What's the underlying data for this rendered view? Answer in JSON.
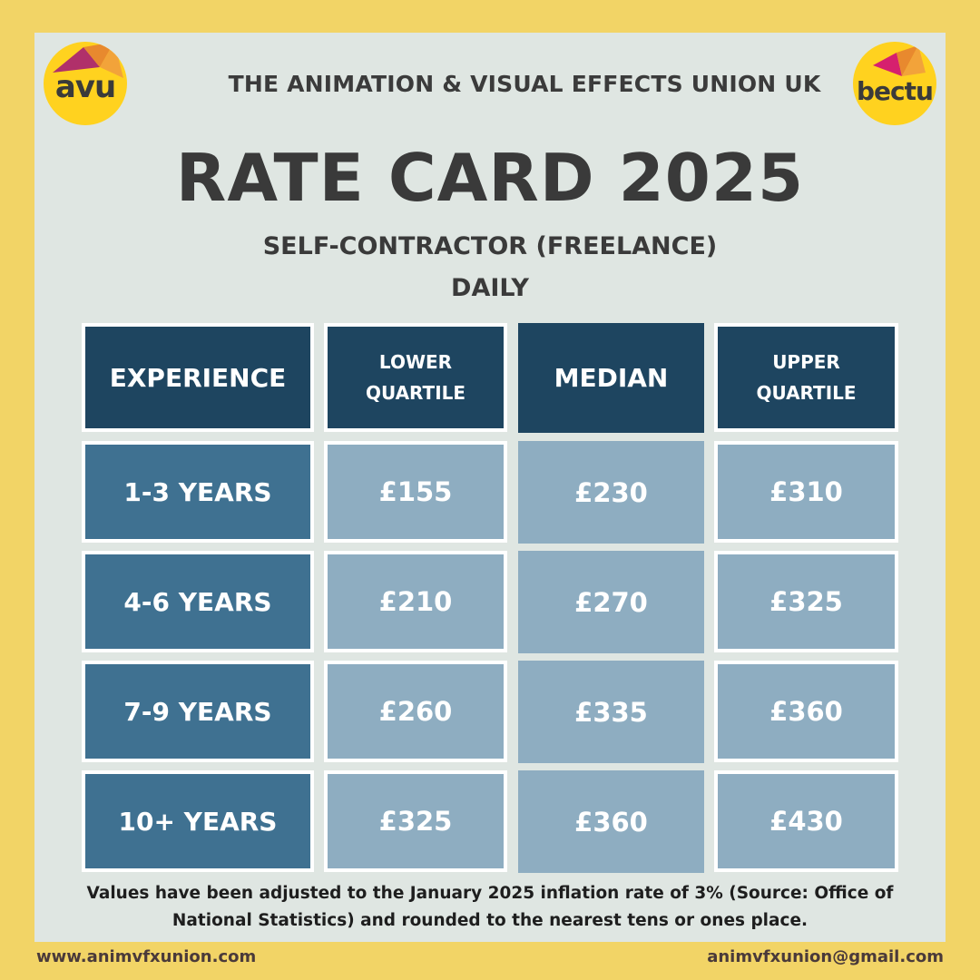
{
  "logos": {
    "left": {
      "text": "avu",
      "icon": "avu-origami-logo-icon"
    },
    "right": {
      "text": "bectu",
      "icon": "bectu-origami-logo-icon"
    }
  },
  "header": {
    "union_name": "THE ANIMATION & VISUAL EFFECTS UNION UK",
    "title": "RATE CARD 2025",
    "subtitle": "SELF-CONTRACTOR (FREELANCE)",
    "period": "DAILY"
  },
  "table": {
    "columns": [
      "EXPERIENCE",
      "LOWER QUARTILE",
      "MEDIAN",
      "UPPER QUARTILE"
    ],
    "rows": [
      {
        "experience": "1-3 YEARS",
        "lower": "£155",
        "median": "£230",
        "upper": "£310"
      },
      {
        "experience": "4-6 YEARS",
        "lower": "£210",
        "median": "£270",
        "upper": "£325"
      },
      {
        "experience": "7-9 YEARS",
        "lower": "£260",
        "median": "£335",
        "upper": "£360"
      },
      {
        "experience": "10+ YEARS",
        "lower": "£325",
        "median": "£360",
        "upper": "£430"
      }
    ]
  },
  "note": "Values have been adjusted to the January 2025 inflation rate of 3% (Source: Office of National Statistics) and rounded to the nearest tens or ones place.",
  "footer": {
    "website": "www.animvfxunion.com",
    "email": "animvfxunion@gmail.com"
  },
  "colors": {
    "background": "#f2d466",
    "panel": "#dfe6e2",
    "header_cell": "#1e4560",
    "experience_cell": "#3f7191",
    "value_cell": "#8eadc1",
    "logo_yellow": "#ffd21f"
  }
}
